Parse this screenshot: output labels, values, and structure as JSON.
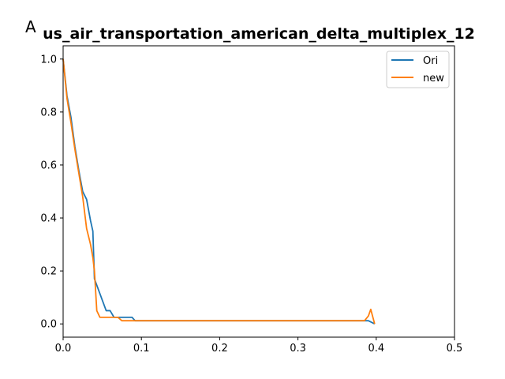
{
  "panel_label": "A",
  "colors": {
    "Ori": "#1f77b4",
    "new": "#ff7f0e"
  },
  "chart_data": {
    "type": "line",
    "title": "us_air_transportation_american_delta_multiplex_12",
    "xlabel": "",
    "ylabel": "",
    "xlim": [
      0,
      0.5
    ],
    "ylim": [
      -0.05,
      1.05
    ],
    "xticks": [
      0.0,
      0.1,
      0.2,
      0.3,
      0.4,
      0.5
    ],
    "xtick_labels": [
      "0.0",
      "0.1",
      "0.2",
      "0.3",
      "0.4",
      "0.5"
    ],
    "yticks": [
      0.0,
      0.2,
      0.4,
      0.6,
      0.8,
      1.0
    ],
    "ytick_labels": [
      "0.0",
      "0.2",
      "0.4",
      "0.6",
      "0.8",
      "1.0"
    ],
    "legend": "top-right",
    "grid": false,
    "series": [
      {
        "name": "Ori",
        "color": "#1f77b4",
        "x": [
          0.0,
          0.005,
          0.01,
          0.015,
          0.02,
          0.025,
          0.03,
          0.035,
          0.038,
          0.04,
          0.045,
          0.05,
          0.055,
          0.06,
          0.065,
          0.07,
          0.075,
          0.08,
          0.088,
          0.092,
          0.1,
          0.2,
          0.3,
          0.39,
          0.398
        ],
        "y": [
          1.0,
          0.86,
          0.78,
          0.67,
          0.58,
          0.5,
          0.47,
          0.39,
          0.35,
          0.17,
          0.13,
          0.09,
          0.05,
          0.05,
          0.025,
          0.025,
          0.025,
          0.025,
          0.025,
          0.012,
          0.012,
          0.012,
          0.012,
          0.012,
          0.0
        ]
      },
      {
        "name": "new",
        "color": "#ff7f0e",
        "x": [
          0.0,
          0.005,
          0.01,
          0.015,
          0.02,
          0.025,
          0.03,
          0.035,
          0.038,
          0.04,
          0.043,
          0.047,
          0.05,
          0.06,
          0.07,
          0.075,
          0.08,
          0.09,
          0.1,
          0.2,
          0.3,
          0.385,
          0.39,
          0.393,
          0.398
        ],
        "y": [
          1.0,
          0.85,
          0.76,
          0.66,
          0.57,
          0.48,
          0.36,
          0.3,
          0.25,
          0.2,
          0.05,
          0.025,
          0.025,
          0.025,
          0.025,
          0.012,
          0.012,
          0.012,
          0.012,
          0.012,
          0.012,
          0.012,
          0.03,
          0.055,
          0.0
        ]
      }
    ]
  }
}
